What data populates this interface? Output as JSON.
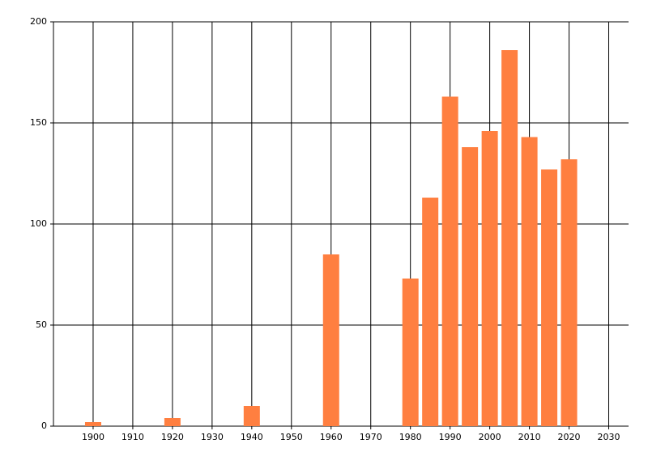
{
  "chart_data": {
    "type": "bar",
    "x": [
      1900,
      1920,
      1940,
      1960,
      1980,
      1985,
      1990,
      1995,
      2000,
      2005,
      2010,
      2015,
      2020
    ],
    "values": [
      2,
      4,
      10,
      85,
      73,
      113,
      163,
      138,
      146,
      186,
      143,
      127,
      132
    ],
    "color": "#ff7f40",
    "xlim": [
      1890,
      2035
    ],
    "xticks": [
      1900,
      1910,
      1920,
      1930,
      1940,
      1950,
      1960,
      1970,
      1980,
      1990,
      2000,
      2010,
      2020,
      2030
    ],
    "ylim": [
      0,
      200
    ],
    "yticks": [
      0,
      50,
      100,
      150,
      200
    ],
    "grid": true
  }
}
